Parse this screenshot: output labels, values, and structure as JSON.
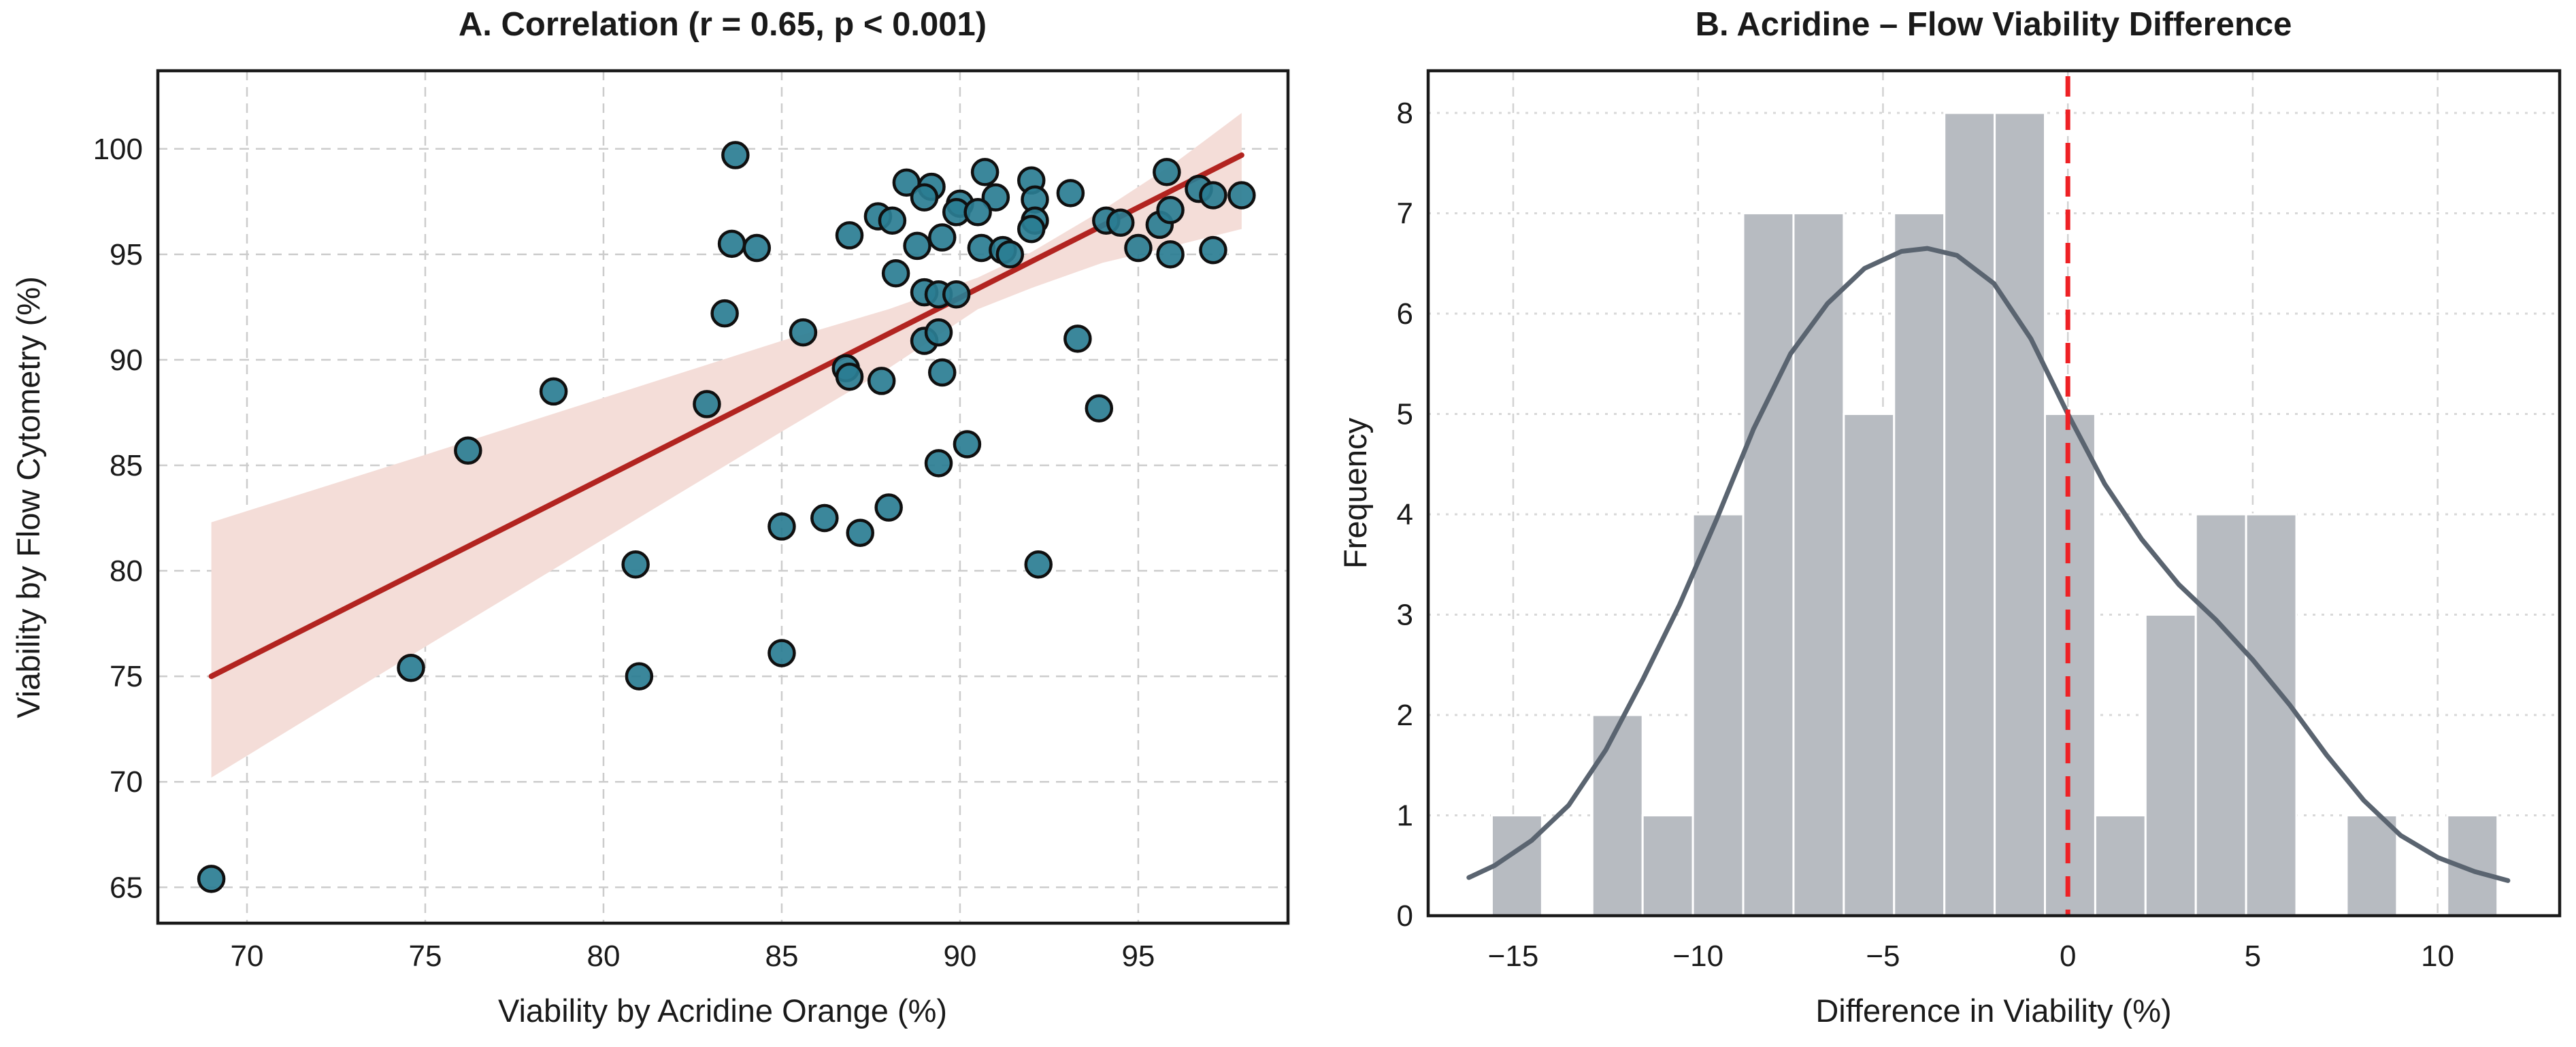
{
  "figure": {
    "background": "#ffffff",
    "panel_a_title": "A. Correlation (r = 0.65, p < 0.001)",
    "panel_b_title": "B. Acridine – Flow Viability Difference"
  },
  "chart_data": [
    {
      "type": "scatter",
      "title": "A. Correlation (r = 0.65, p < 0.001)",
      "xlabel": "Viability by Acridine Orange (%)",
      "ylabel": "Viability by Flow Cytometry (%)",
      "xlim": [
        67.5,
        99.2
      ],
      "ylim": [
        63.3,
        103.7
      ],
      "grid": "dashed",
      "xticks": [
        {
          "v": 70,
          "label": "70"
        },
        {
          "v": 75,
          "label": "75"
        },
        {
          "v": 80,
          "label": "80"
        },
        {
          "v": 85,
          "label": "85"
        },
        {
          "v": 90,
          "label": "90"
        },
        {
          "v": 95,
          "label": "95"
        }
      ],
      "yticks": [
        {
          "v": 65,
          "label": "65"
        },
        {
          "v": 70,
          "label": "70"
        },
        {
          "v": 75,
          "label": "75"
        },
        {
          "v": 80,
          "label": "80"
        },
        {
          "v": 85,
          "label": "85"
        },
        {
          "v": 90,
          "label": "90"
        },
        {
          "v": 95,
          "label": "95"
        },
        {
          "v": 100,
          "label": "100"
        }
      ],
      "points": [
        [
          69.0,
          65.4
        ],
        [
          74.6,
          75.4
        ],
        [
          76.2,
          85.7
        ],
        [
          78.6,
          88.5
        ],
        [
          80.9,
          80.3
        ],
        [
          81.0,
          75.0
        ],
        [
          82.9,
          87.9
        ],
        [
          83.7,
          99.7
        ],
        [
          83.6,
          95.5
        ],
        [
          84.3,
          95.3
        ],
        [
          83.4,
          92.2
        ],
        [
          85.6,
          91.3
        ],
        [
          85.0,
          82.1
        ],
        [
          86.2,
          82.5
        ],
        [
          87.2,
          81.8
        ],
        [
          88.0,
          83.0
        ],
        [
          85.0,
          76.1
        ],
        [
          92.2,
          80.3
        ],
        [
          89.4,
          85.1
        ],
        [
          90.2,
          86.0
        ],
        [
          93.9,
          87.7
        ],
        [
          93.3,
          91.0
        ],
        [
          86.9,
          95.9
        ],
        [
          87.7,
          96.8
        ],
        [
          88.1,
          96.6
        ],
        [
          88.5,
          98.4
        ],
        [
          89.2,
          98.2
        ],
        [
          89.0,
          97.7
        ],
        [
          90.7,
          98.9
        ],
        [
          91.0,
          97.7
        ],
        [
          92.0,
          98.5
        ],
        [
          92.1,
          97.6
        ],
        [
          92.1,
          96.6
        ],
        [
          93.1,
          97.9
        ],
        [
          90.0,
          97.4
        ],
        [
          89.9,
          97.0
        ],
        [
          90.5,
          97.0
        ],
        [
          88.8,
          95.4
        ],
        [
          89.5,
          95.8
        ],
        [
          90.6,
          95.3
        ],
        [
          91.2,
          95.2
        ],
        [
          91.4,
          95.0
        ],
        [
          92.0,
          96.2
        ],
        [
          88.2,
          94.1
        ],
        [
          89.0,
          93.2
        ],
        [
          89.4,
          93.1
        ],
        [
          89.9,
          93.1
        ],
        [
          89.0,
          90.9
        ],
        [
          89.4,
          91.3
        ],
        [
          89.5,
          89.4
        ],
        [
          86.8,
          89.6
        ],
        [
          86.9,
          89.2
        ],
        [
          87.8,
          89.0
        ],
        [
          95.0,
          95.3
        ],
        [
          95.8,
          98.9
        ],
        [
          95.9,
          95.0
        ],
        [
          95.6,
          96.4
        ],
        [
          95.9,
          97.1
        ],
        [
          96.7,
          98.1
        ],
        [
          94.1,
          96.6
        ],
        [
          94.5,
          96.5
        ],
        [
          97.1,
          97.8
        ],
        [
          97.9,
          97.8
        ],
        [
          97.1,
          95.2
        ]
      ],
      "point_style": {
        "fill": "#2a7d93",
        "stroke": "#101010",
        "radius": 18.5,
        "stroke_width": 4.5
      },
      "regression": {
        "x1": 69.0,
        "y1": 75.0,
        "x2": 97.9,
        "y2": 99.7,
        "color": "#b22420",
        "width": 8
      },
      "ci_band": {
        "color": "#f4ddd8",
        "top": [
          [
            69.0,
            82.3
          ],
          [
            75.0,
            85.5
          ],
          [
            80.0,
            88.2
          ],
          [
            85.0,
            90.9
          ],
          [
            88.0,
            92.4
          ],
          [
            90.5,
            93.9
          ],
          [
            92.0,
            95.1
          ],
          [
            94.0,
            97.1
          ],
          [
            96.0,
            99.3
          ],
          [
            97.9,
            101.7
          ]
        ],
        "bottom": [
          [
            69.0,
            70.2
          ],
          [
            75.0,
            76.4
          ],
          [
            80.0,
            81.5
          ],
          [
            85.0,
            86.6
          ],
          [
            88.0,
            89.6
          ],
          [
            90.5,
            92.4
          ],
          [
            92.0,
            93.4
          ],
          [
            94.0,
            94.6
          ],
          [
            96.0,
            95.4
          ],
          [
            97.9,
            96.2
          ]
        ]
      },
      "grid_color": "#cccccc",
      "spine_color": "#1a1a1a"
    },
    {
      "type": "histogram",
      "title": "B. Acridine – Flow Viability Difference",
      "xlabel": "Difference in Viability (%)",
      "ylabel": "Frequency",
      "xlim": [
        -17.3,
        13.3
      ],
      "ylim": [
        0,
        8.42
      ],
      "grid": "dashed-vertical dotted-horizontal",
      "xticks": [
        {
          "v": -15,
          "label": "−15"
        },
        {
          "v": -10,
          "label": "−10"
        },
        {
          "v": -5,
          "label": "−5"
        },
        {
          "v": 0,
          "label": "0"
        },
        {
          "v": 5,
          "label": "5"
        },
        {
          "v": 10,
          "label": "10"
        }
      ],
      "yticks": [
        {
          "v": 0,
          "label": "0"
        },
        {
          "v": 1,
          "label": "1"
        },
        {
          "v": 2,
          "label": "2"
        },
        {
          "v": 3,
          "label": "3"
        },
        {
          "v": 4,
          "label": "4"
        },
        {
          "v": 5,
          "label": "5"
        },
        {
          "v": 6,
          "label": "6"
        },
        {
          "v": 7,
          "label": "7"
        },
        {
          "v": 8,
          "label": "8"
        }
      ],
      "bin_width": 1.36,
      "bins": [
        {
          "start": -15.58,
          "count": 1
        },
        {
          "start": -14.22,
          "count": 0
        },
        {
          "start": -12.86,
          "count": 2
        },
        {
          "start": -11.5,
          "count": 1
        },
        {
          "start": -10.14,
          "count": 4
        },
        {
          "start": -8.78,
          "count": 7
        },
        {
          "start": -7.42,
          "count": 7
        },
        {
          "start": -6.06,
          "count": 5
        },
        {
          "start": -4.7,
          "count": 7
        },
        {
          "start": -3.34,
          "count": 8
        },
        {
          "start": -1.98,
          "count": 8
        },
        {
          "start": -0.62,
          "count": 5
        },
        {
          "start": 0.74,
          "count": 1
        },
        {
          "start": 2.1,
          "count": 3
        },
        {
          "start": 3.46,
          "count": 4
        },
        {
          "start": 4.82,
          "count": 4
        },
        {
          "start": 6.18,
          "count": 0
        },
        {
          "start": 7.54,
          "count": 1
        },
        {
          "start": 8.9,
          "count": 0
        },
        {
          "start": 10.26,
          "count": 1
        }
      ],
      "bar_style": {
        "fill": "#b7bbc1",
        "stroke": "#ffffff",
        "stroke_width": 3
      },
      "kde": {
        "color": "#5a6470",
        "width": 7,
        "points": [
          [
            -16.2,
            0.38
          ],
          [
            -15.5,
            0.5
          ],
          [
            -14.5,
            0.75
          ],
          [
            -13.5,
            1.1
          ],
          [
            -12.5,
            1.65
          ],
          [
            -11.5,
            2.35
          ],
          [
            -10.5,
            3.1
          ],
          [
            -9.5,
            3.95
          ],
          [
            -8.5,
            4.85
          ],
          [
            -7.5,
            5.6
          ],
          [
            -6.5,
            6.1
          ],
          [
            -5.5,
            6.45
          ],
          [
            -4.5,
            6.62
          ],
          [
            -3.8,
            6.65
          ],
          [
            -3.0,
            6.58
          ],
          [
            -2.0,
            6.3
          ],
          [
            -1.0,
            5.75
          ],
          [
            0.0,
            5.0
          ],
          [
            1.0,
            4.3
          ],
          [
            2.0,
            3.75
          ],
          [
            3.0,
            3.3
          ],
          [
            4.0,
            2.95
          ],
          [
            5.0,
            2.55
          ],
          [
            6.0,
            2.1
          ],
          [
            7.0,
            1.6
          ],
          [
            8.0,
            1.15
          ],
          [
            9.0,
            0.8
          ],
          [
            10.0,
            0.58
          ],
          [
            11.0,
            0.44
          ],
          [
            11.9,
            0.35
          ]
        ]
      },
      "zero_line": {
        "x": 0,
        "color": "#ee2125",
        "width": 7,
        "dash": "30 19"
      },
      "grid_color": "#d2d2d2",
      "spine_color": "#1a1a1a"
    }
  ]
}
